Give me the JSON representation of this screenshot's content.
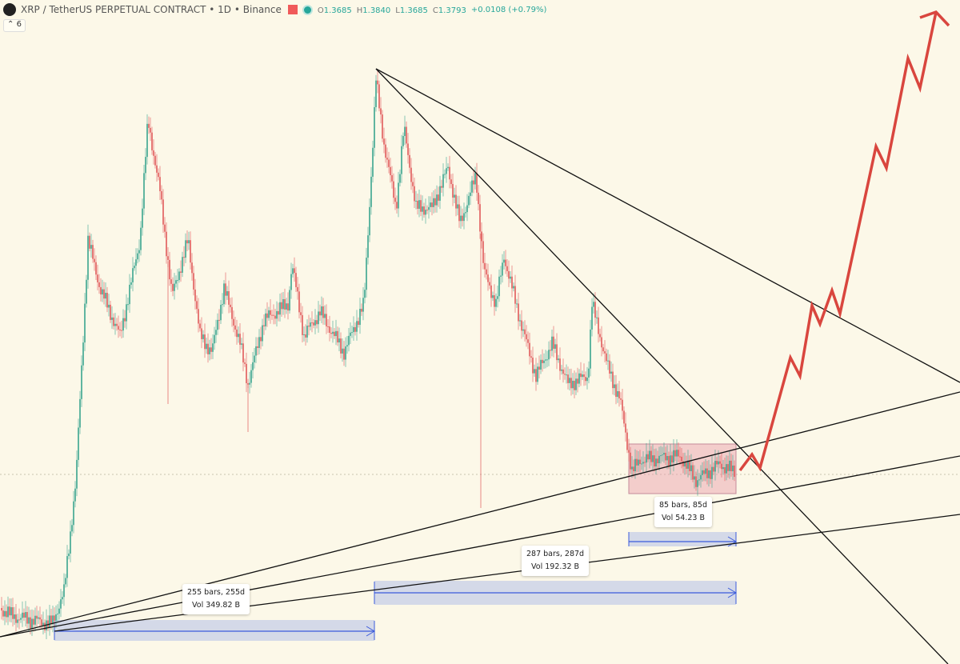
{
  "header": {
    "symbol": "XRP / TetherUS PERPETUAL CONTRACT • 1D • Binance",
    "ohlc": [
      {
        "label": "O",
        "value": "1.3685"
      },
      {
        "label": "H",
        "value": "1.3840"
      },
      {
        "label": "L",
        "value": "1.3685"
      },
      {
        "label": "C",
        "value": "1.3793"
      }
    ],
    "change": "+0.0108 (+0.79%)",
    "indicator_count": "6"
  },
  "measurements": [
    {
      "bars": "255 bars, 255d",
      "vol": "Vol 349.82 B"
    },
    {
      "bars": "287 bars, 287d",
      "vol": "Vol 192.32 B"
    },
    {
      "bars": "85 bars, 85d",
      "vol": "Vol 54.23 B"
    }
  ]
}
